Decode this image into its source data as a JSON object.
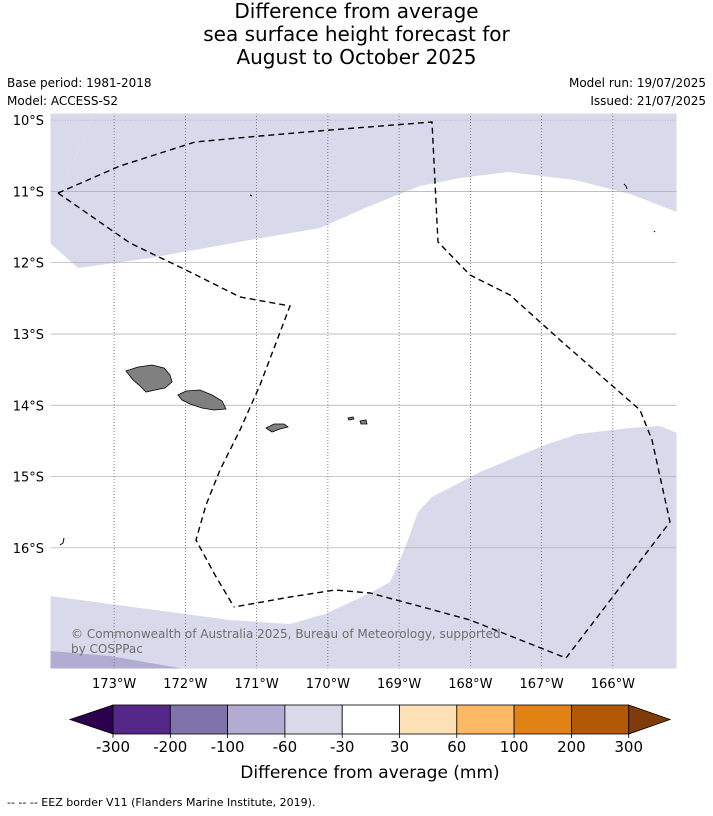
{
  "title": {
    "line1": "Difference from average",
    "line2": "sea surface height forecast for",
    "line3": "August to October 2025"
  },
  "meta": {
    "base_period": "Base period: 1981-2018",
    "model": "Model: ACCESS-S2",
    "model_run": "Model run: 19/07/2025",
    "issued": "Issued: 21/07/2025"
  },
  "map": {
    "lon_range": [
      -173.9,
      -165.1
    ],
    "lat_range": [
      -17.7,
      -9.9
    ],
    "lat_labels": [
      "10°S",
      "11°S",
      "12°S",
      "13°S",
      "14°S",
      "15°S",
      "16°S"
    ],
    "lon_labels": [
      "173°W",
      "172°W",
      "171°W",
      "170°W",
      "169°W",
      "168°W",
      "167°W",
      "166°W"
    ],
    "copyright_line1": "© Commonwealth of Australia 2025, Bureau of Meteorology, supported",
    "copyright_line2": "by COSPPac",
    "land_color": "#808080",
    "eez_style": "dashed"
  },
  "colorbar": {
    "tick_labels": [
      "-300",
      "-200",
      "-100",
      "-60",
      "-30",
      "30",
      "60",
      "100",
      "200",
      "300"
    ],
    "colors": [
      "#2d004b",
      "#542788",
      "#8073ac",
      "#b2abd2",
      "#d8daeb",
      "#ffffff",
      "#fee0b6",
      "#fdb863",
      "#e08214",
      "#b35806",
      "#7f3b08"
    ],
    "label": "Difference from average (mm)"
  },
  "footnote": "--  --  -- EEZ border V11 (Flanders Marine Institute, 2019)."
}
